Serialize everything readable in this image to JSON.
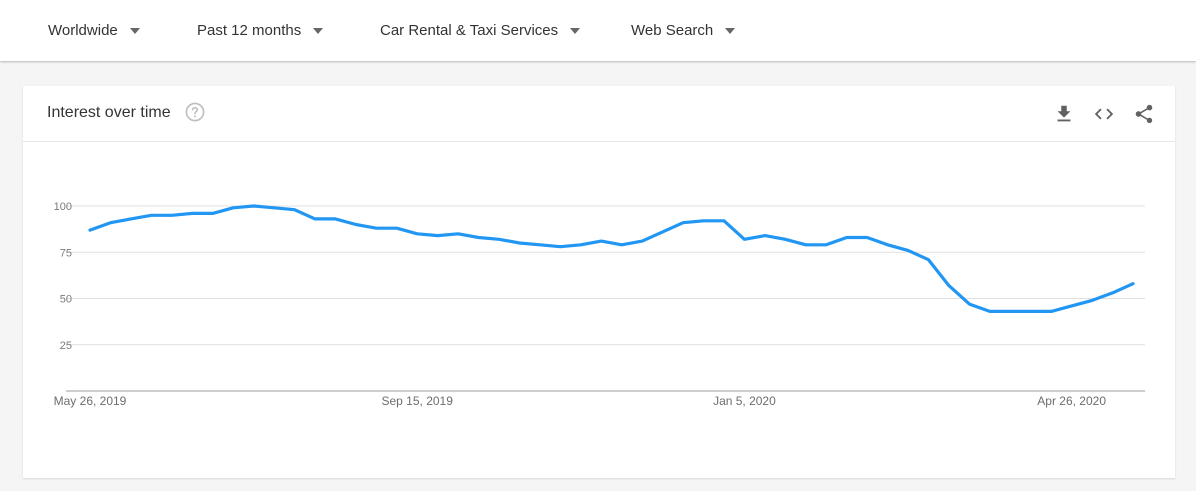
{
  "filters": [
    {
      "label": "Worldwide"
    },
    {
      "label": "Past 12 months"
    },
    {
      "label": "Car Rental & Taxi Services"
    },
    {
      "label": "Web Search"
    }
  ],
  "card": {
    "title": "Interest over time",
    "icons": [
      "help-icon",
      "download-icon",
      "embed-code-icon",
      "share-icon"
    ]
  },
  "colors": {
    "line": "#2196f3",
    "grid": "#e0e0e0",
    "axis": "#9e9e9e"
  },
  "chart_data": {
    "type": "line",
    "title": "Interest over time",
    "xlabel": "",
    "ylabel": "",
    "ylim": [
      0,
      100
    ],
    "yticks": [
      25,
      50,
      75,
      100
    ],
    "xticks": [
      "May 26, 2019",
      "Sep 15, 2019",
      "Jan 5, 2020",
      "Apr 26, 2020"
    ],
    "grid": true,
    "x_start": "2019-05-26",
    "x_end": "2020-05-17",
    "series": [
      {
        "values": [
          87,
          91,
          93,
          95,
          95,
          96,
          96,
          99,
          100,
          99,
          98,
          93,
          93,
          90,
          88,
          88,
          85,
          84,
          85,
          83,
          82,
          80,
          79,
          78,
          79,
          81,
          79,
          81,
          86,
          91,
          92,
          92,
          82,
          84,
          82,
          79,
          79,
          83,
          83,
          79,
          76,
          71,
          57,
          47,
          43,
          43,
          43,
          43,
          46,
          49,
          53,
          58
        ]
      }
    ]
  }
}
